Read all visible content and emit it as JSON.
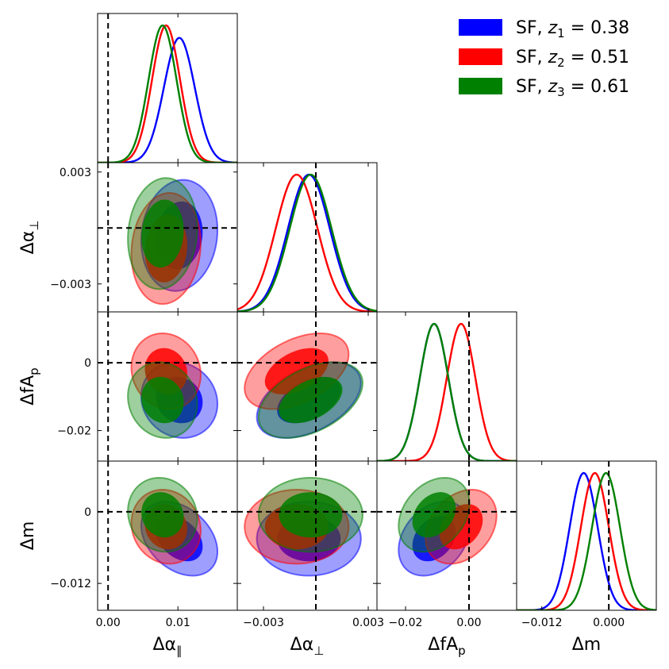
{
  "chart_data": {
    "type": "triangle-corner-plot",
    "title": "",
    "parameters": [
      {
        "key": "apar",
        "label": "Δα",
        "sub": "∥",
        "range": [
          -0.0015,
          0.0185
        ],
        "ticks": [
          {
            "v": 0.0,
            "t": "0.00"
          },
          {
            "v": 0.01,
            "t": "0.01"
          }
        ],
        "ref": 0.0
      },
      {
        "key": "aperp",
        "label": "Δα",
        "sub": "⊥",
        "range": [
          -0.0045,
          0.0035
        ],
        "ticks": [
          {
            "v": -0.003,
            "t": "−0.003"
          },
          {
            "v": 0.003,
            "t": "0.003"
          }
        ],
        "ref": 0.0
      },
      {
        "key": "fAp",
        "label": "ΔfA",
        "sub": "p",
        "range": [
          -0.029,
          0.015
        ],
        "ticks": [
          {
            "v": -0.02,
            "t": "−0.02"
          },
          {
            "v": 0.0,
            "t": "0.00"
          }
        ],
        "ticks_y": [
          {
            "v": -0.02,
            "t": "−0.02"
          },
          {
            "v": 0.0,
            "t": "0"
          }
        ],
        "ref": 0.0
      },
      {
        "key": "m",
        "label": "Δm",
        "sub": "",
        "range": [
          -0.0165,
          0.0085
        ],
        "ticks": [
          {
            "v": -0.012,
            "t": "−0.012"
          },
          {
            "v": 0.0,
            "t": "0.000"
          }
        ],
        "ticks_y": [
          {
            "v": -0.012,
            "t": "−0.012"
          },
          {
            "v": 0.0,
            "t": "0"
          }
        ],
        "ref": 0.0
      }
    ],
    "series": [
      {
        "name": "SF, z1 = 0.38",
        "legend_prefix": "SF, ",
        "legend_z": "z",
        "legend_sub": "1",
        "legend_value": " = 0.38",
        "color": "#0000ff",
        "mean": {
          "apar": 0.0102,
          "aperp": -0.0004,
          "fAp": -0.011,
          "m": -0.0045
        },
        "sigma": {
          "apar": 0.0022,
          "aperp": 0.0012,
          "fAp": 0.0045,
          "m": 0.0025
        },
        "corr": [
          [
            0,
            1,
            0.1
          ],
          [
            0,
            2,
            -0.1
          ],
          [
            0,
            3,
            -0.35
          ],
          [
            1,
            2,
            0.45
          ],
          [
            1,
            3,
            0.0
          ],
          [
            2,
            3,
            0.3
          ]
        ]
      },
      {
        "name": "SF, z2 = 0.51",
        "legend_prefix": "SF, ",
        "legend_z": "z",
        "legend_sub": "2",
        "legend_value": " = 0.51",
        "color": "#ff0000",
        "mean": {
          "apar": 0.0083,
          "aperp": -0.0011,
          "fAp": -0.0025,
          "m": -0.0025
        },
        "sigma": {
          "apar": 0.002,
          "aperp": 0.0012,
          "fAp": 0.0045,
          "m": 0.0025
        },
        "corr": [
          [
            0,
            1,
            0.1
          ],
          [
            0,
            2,
            -0.1
          ],
          [
            0,
            3,
            -0.1
          ],
          [
            1,
            2,
            0.45
          ],
          [
            1,
            3,
            0.0
          ],
          [
            2,
            3,
            0.3
          ]
        ]
      },
      {
        "name": "SF, z3 = 0.61",
        "legend_prefix": "SF, ",
        "legend_z": "z",
        "legend_sub": "3",
        "legend_value": " = 0.61",
        "color": "#008000",
        "mean": {
          "apar": 0.0078,
          "aperp": -0.0003,
          "fAp": -0.011,
          "m": -0.0005
        },
        "sigma": {
          "apar": 0.002,
          "aperp": 0.0012,
          "fAp": 0.0045,
          "m": 0.0025
        },
        "corr": [
          [
            0,
            1,
            0.1
          ],
          [
            0,
            2,
            -0.1
          ],
          [
            0,
            3,
            -0.1
          ],
          [
            1,
            2,
            0.45
          ],
          [
            1,
            3,
            0.0
          ],
          [
            2,
            3,
            0.3
          ]
        ]
      }
    ],
    "contour_levels": [
      "68%",
      "95%"
    ],
    "reference_lines": "dashed black at zero for every parameter",
    "legend_position": "top-right"
  }
}
